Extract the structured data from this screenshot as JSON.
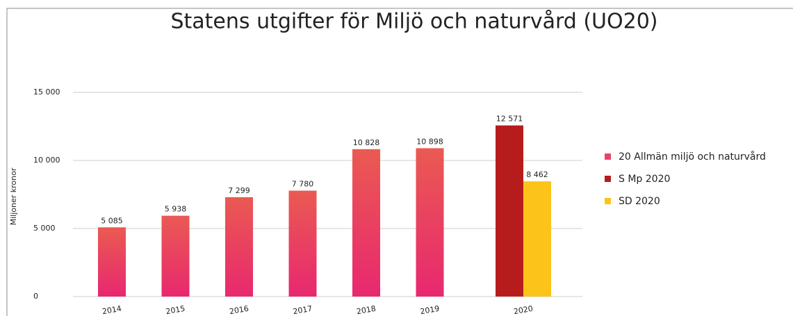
{
  "chart_data": {
    "type": "bar",
    "title": "Statens utgifter för Miljö och naturvård (UO20)",
    "y_label": "Miljoner kronor",
    "categories": [
      "2014",
      "2015",
      "2016",
      "2017",
      "2018",
      "2019",
      "2020"
    ],
    "series": [
      {
        "name": "20 Allmän miljö och naturvård",
        "color": "#e8436a",
        "values": [
          5085,
          5938,
          7299,
          7780,
          10828,
          10898,
          null
        ],
        "value_labels": [
          "5 085",
          "5 938",
          "7 299",
          "7 780",
          "10 828",
          "10 898",
          null
        ]
      },
      {
        "name": "S Mp 2020",
        "color": "#b71c1c",
        "values": [
          null,
          null,
          null,
          null,
          null,
          null,
          12571
        ],
        "value_labels": [
          null,
          null,
          null,
          null,
          null,
          null,
          "12 571"
        ]
      },
      {
        "name": "SD 2020",
        "color": "#fcc419",
        "values": [
          null,
          null,
          null,
          null,
          null,
          null,
          8462
        ],
        "value_labels": [
          null,
          null,
          null,
          null,
          null,
          null,
          "8 462"
        ]
      }
    ],
    "ylim": [
      0,
      15000
    ],
    "yticks": [
      0,
      {
        "value": 5000,
        "label": "5 000"
      },
      {
        "value": 10000,
        "label": "10 000"
      },
      {
        "value": 15000,
        "label": "15 000"
      }
    ],
    "grid": true,
    "legend": "right"
  }
}
